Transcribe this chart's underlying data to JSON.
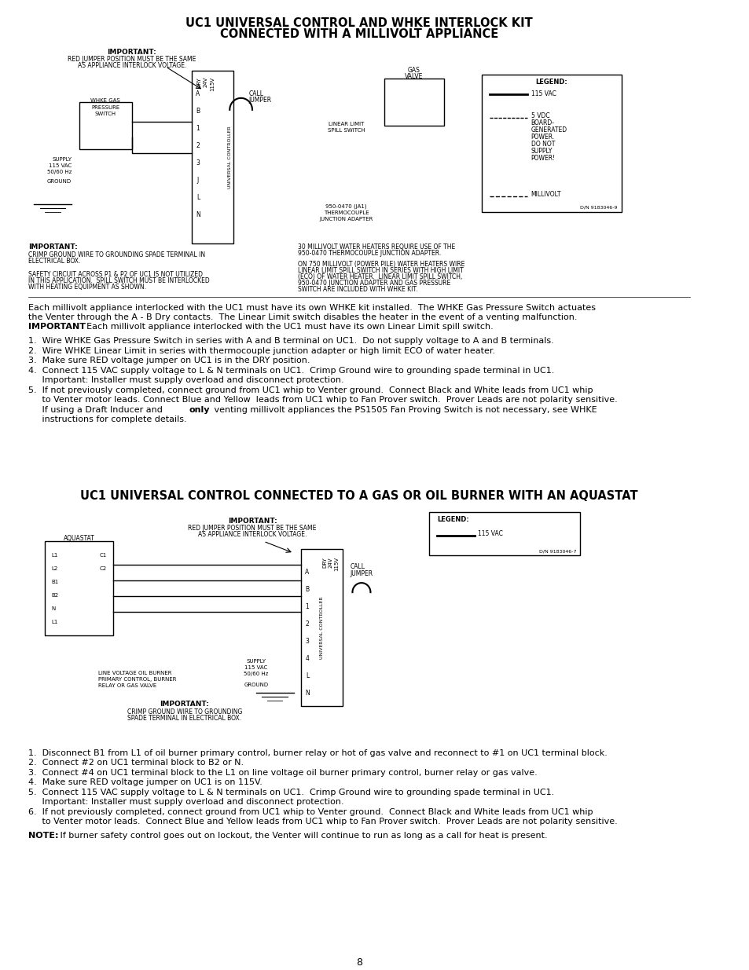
{
  "title1": "UC1 UNIVERSAL CONTROL AND WHKE INTERLOCK KIT",
  "title1b": "CONNECTED WITH A MILLIVOLT APPLIANCE",
  "title2": "UC1 UNIVERSAL CONTROL CONNECTED TO A GAS OR OIL BURNER WITH AN AQUASTAT",
  "bg_color": "#ffffff",
  "text_color": "#000000",
  "page_number": "8",
  "section1_body_text": [
    "Each millivolt appliance interlocked with the UC1 must have its own WHKE kit installed.  The WHKE Gas Pressure Switch actuates",
    "the Venter through the A - B Dry contacts.  The Linear Limit switch disables the heater in the event of a venting malfunction.",
    "⁠IMPORTANT⁠: Each millivolt appliance interlocked with the UC1 must have its own Linear Limit spill switch."
  ],
  "section1_steps": [
    "1.  Wire WHKE Gas Pressure Switch in series with A and B terminal on UC1.  Do not supply voltage to A and B terminals.",
    "2.  Wire WHKE Linear Limit in series with thermocouple junction adapter or high limit ECO of water heater.",
    "3.  Make sure RED voltage jumper on UC1 is in the DRY position.",
    "4.  Connect 115 VAC supply voltage to L & N terminals on UC1.  Crimp Ground wire to grounding spade terminal in UC1.",
    "     Important: Installer must supply overload and disconnect protection.",
    "5.  If not previously completed, connect ground from UC1 whip to Venter ground.  Connect Black and White leads from UC1 whip",
    "     to Venter motor leads. Connect Blue and Yellow  leads from UC1 whip to Fan Prover switch.  Prover Leads are not polarity sensitive.",
    "     If using a Draft Inducer and ⁠only⁠ venting millivolt appliances the PS1505 Fan Proving Switch is not necessary, see WHKE",
    "     instructions for complete details."
  ],
  "section2_steps": [
    "1.  Disconnect B1 from L1 of oil burner primary control, burner relay or hot of gas valve and reconnect to #1 on UC1 terminal block.",
    "2.  Connect #2 on UC1 terminal block to B2 or N.",
    "3.  Connect #4 on UC1 terminal block to the L1 on line voltage oil burner primary control, burner relay or gas valve.",
    "4.  Make sure RED voltage jumper on UC1 is on 115V.",
    "5.  Connect 115 VAC supply voltage to L & N terminals on UC1.  Crimp Ground wire to grounding spade terminal in UC1.",
    "     Important: Installer must supply overload and disconnect protection.",
    "6.  If not previously completed, connect ground from UC1 whip to Venter ground.  Connect Black and White leads from UC1 whip",
    "     to Venter motor leads.  Connect Blue and Yellow leads from UC1 whip to Fan Prover switch.  Prover Leads are not polarity sensitive."
  ],
  "note_text": "NOTE: If burner safety control goes out on lockout, the Venter will continue to run as long as a call for heat is present."
}
